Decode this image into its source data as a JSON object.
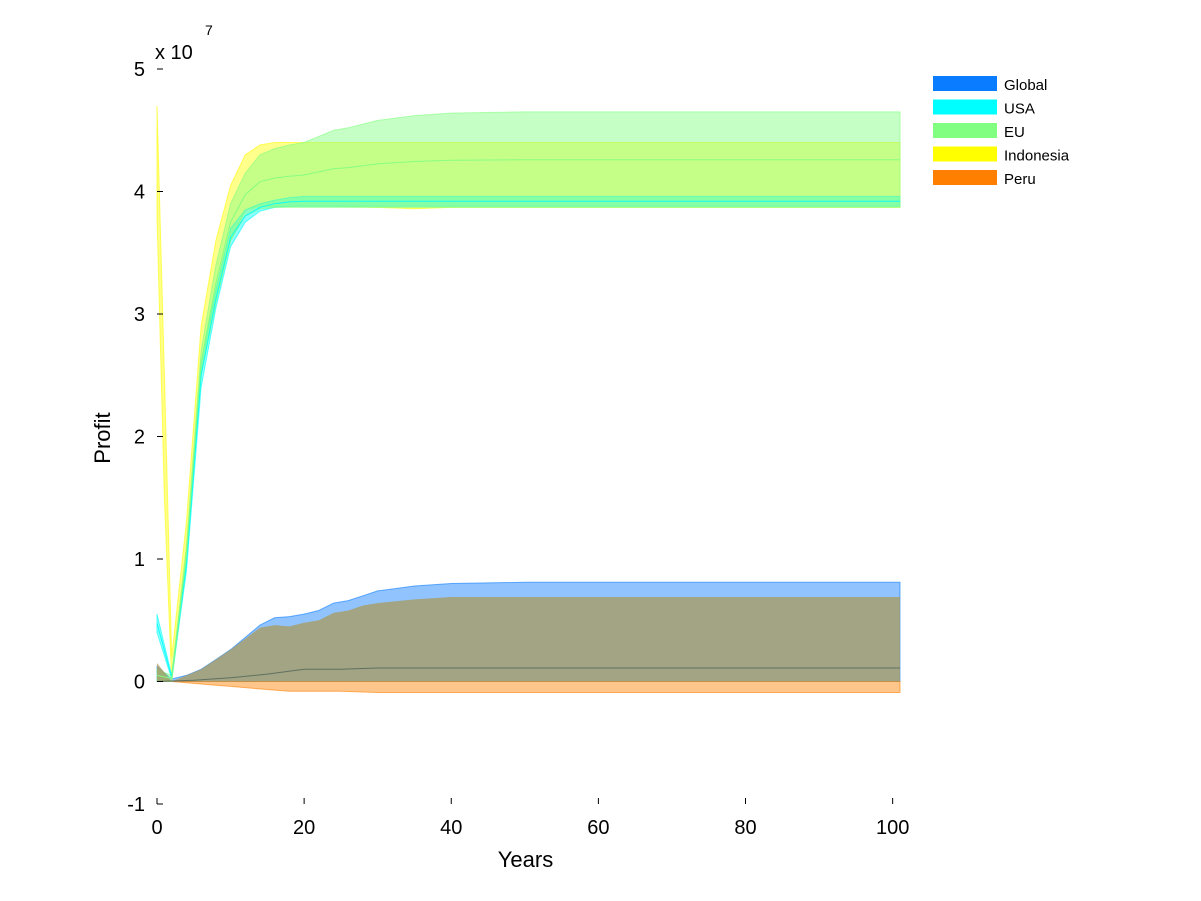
{
  "chart_data": {
    "type": "area",
    "title": "",
    "xlabel": "Years",
    "ylabel": "Profit",
    "xlim": [
      0,
      101
    ],
    "ylim": [
      -1,
      5
    ],
    "y_exponent_label": "x 10",
    "y_exponent_power": "7",
    "xticks": [
      0,
      20,
      40,
      60,
      80,
      100
    ],
    "yticks": [
      -1,
      0,
      1,
      2,
      3,
      4,
      5
    ],
    "grid": false,
    "legend_position": "top-right",
    "series": [
      {
        "name": "Global",
        "color": "#0a7cff",
        "x": [
          0,
          2,
          4,
          6,
          8,
          10,
          12,
          14,
          16,
          18,
          20,
          22,
          24,
          26,
          28,
          30,
          35,
          40,
          50,
          70,
          101
        ],
        "upper": [
          0.12,
          0.02,
          0.05,
          0.1,
          0.18,
          0.26,
          0.36,
          0.46,
          0.52,
          0.53,
          0.55,
          0.58,
          0.64,
          0.66,
          0.7,
          0.74,
          0.78,
          0.8,
          0.81,
          0.81,
          0.81
        ],
        "lower": [
          0.0,
          0.0,
          0.0,
          0.0,
          0.0,
          0.0,
          0.0,
          0.0,
          0.0,
          0.0,
          0.0,
          0.0,
          0.0,
          0.0,
          0.0,
          0.0,
          0.0,
          0.0,
          0.0,
          0.0,
          0.0
        ]
      },
      {
        "name": "USA",
        "color": "#00ffff",
        "x": [
          0,
          2,
          4,
          6,
          8,
          10,
          12,
          14,
          16,
          18,
          20,
          24,
          28,
          35,
          40,
          60,
          101
        ],
        "upper": [
          0.55,
          0.05,
          1.0,
          2.6,
          3.2,
          3.7,
          3.85,
          3.9,
          3.93,
          3.95,
          3.96,
          3.96,
          3.96,
          3.96,
          3.96,
          3.96,
          3.96
        ],
        "lower": [
          0.4,
          0.02,
          0.9,
          2.4,
          3.05,
          3.55,
          3.75,
          3.84,
          3.87,
          3.88,
          3.88,
          3.88,
          3.88,
          3.88,
          3.88,
          3.88,
          3.88
        ]
      },
      {
        "name": "EU",
        "color": "#80ff80",
        "x": [
          0,
          2,
          4,
          6,
          8,
          10,
          12,
          14,
          16,
          18,
          20,
          22,
          24,
          26,
          28,
          30,
          35,
          40,
          50,
          70,
          101
        ],
        "upper": [
          0.1,
          0.05,
          1.1,
          2.7,
          3.4,
          3.9,
          4.15,
          4.3,
          4.35,
          4.38,
          4.4,
          4.45,
          4.5,
          4.52,
          4.55,
          4.58,
          4.62,
          4.64,
          4.65,
          4.65,
          4.65
        ],
        "lower": [
          0.0,
          0.0,
          0.95,
          2.5,
          3.1,
          3.6,
          3.8,
          3.86,
          3.87,
          3.87,
          3.87,
          3.87,
          3.87,
          3.87,
          3.87,
          3.87,
          3.87,
          3.87,
          3.87,
          3.87,
          3.87
        ]
      },
      {
        "name": "Indonesia",
        "color": "#ffff00",
        "x": [
          0,
          1,
          2,
          4,
          6,
          8,
          10,
          12,
          14,
          16,
          18,
          20,
          24,
          30,
          35,
          40,
          60,
          101
        ],
        "upper": [
          4.7,
          2.5,
          0.2,
          1.3,
          2.9,
          3.6,
          4.05,
          4.3,
          4.38,
          4.4,
          4.4,
          4.4,
          4.4,
          4.4,
          4.4,
          4.4,
          4.4,
          4.4
        ],
        "lower": [
          3.8,
          1.5,
          0.0,
          1.1,
          2.5,
          3.1,
          3.6,
          3.85,
          3.88,
          3.88,
          3.88,
          3.88,
          3.88,
          3.87,
          3.86,
          3.87,
          3.87,
          3.87
        ]
      },
      {
        "name": "Peru",
        "color": "#ff8000",
        "x": [
          0,
          2,
          4,
          6,
          8,
          10,
          12,
          14,
          16,
          18,
          20,
          25,
          30,
          35,
          40,
          60,
          101
        ],
        "upper": [
          0.0,
          0.0,
          0.0,
          0.0,
          0.0,
          0.0,
          0.0,
          0.0,
          0.0,
          0.0,
          0.0,
          0.0,
          0.0,
          0.0,
          0.0,
          0.0,
          0.0
        ],
        "lower": [
          0.0,
          0.0,
          -0.01,
          -0.02,
          -0.03,
          -0.04,
          -0.05,
          -0.06,
          -0.07,
          -0.08,
          -0.08,
          -0.08,
          -0.09,
          -0.09,
          -0.09,
          -0.09,
          -0.09
        ]
      }
    ],
    "overlay_band": {
      "color": "#a89a5a",
      "x": [
        0,
        2,
        4,
        6,
        8,
        10,
        12,
        14,
        16,
        18,
        20,
        22,
        24,
        26,
        28,
        30,
        35,
        40,
        50,
        70,
        101
      ],
      "upper": [
        0.15,
        0.0,
        0.05,
        0.1,
        0.18,
        0.26,
        0.35,
        0.44,
        0.46,
        0.45,
        0.48,
        0.5,
        0.56,
        0.58,
        0.62,
        0.64,
        0.67,
        0.69,
        0.69,
        0.69,
        0.69
      ],
      "lower": [
        0.0,
        0.0,
        0.0,
        0.0,
        0.0,
        0.0,
        0.0,
        0.0,
        0.0,
        0.0,
        0.0,
        0.0,
        0.0,
        0.0,
        0.0,
        0.0,
        0.0,
        0.0,
        0.0,
        0.0,
        0.0
      ]
    },
    "median_line": {
      "color": "#607060",
      "x": [
        0,
        5,
        10,
        15,
        20,
        25,
        30,
        40,
        60,
        101
      ],
      "values": [
        0.0,
        0.01,
        0.03,
        0.06,
        0.1,
        0.1,
        0.11,
        0.11,
        0.11,
        0.11
      ]
    }
  }
}
